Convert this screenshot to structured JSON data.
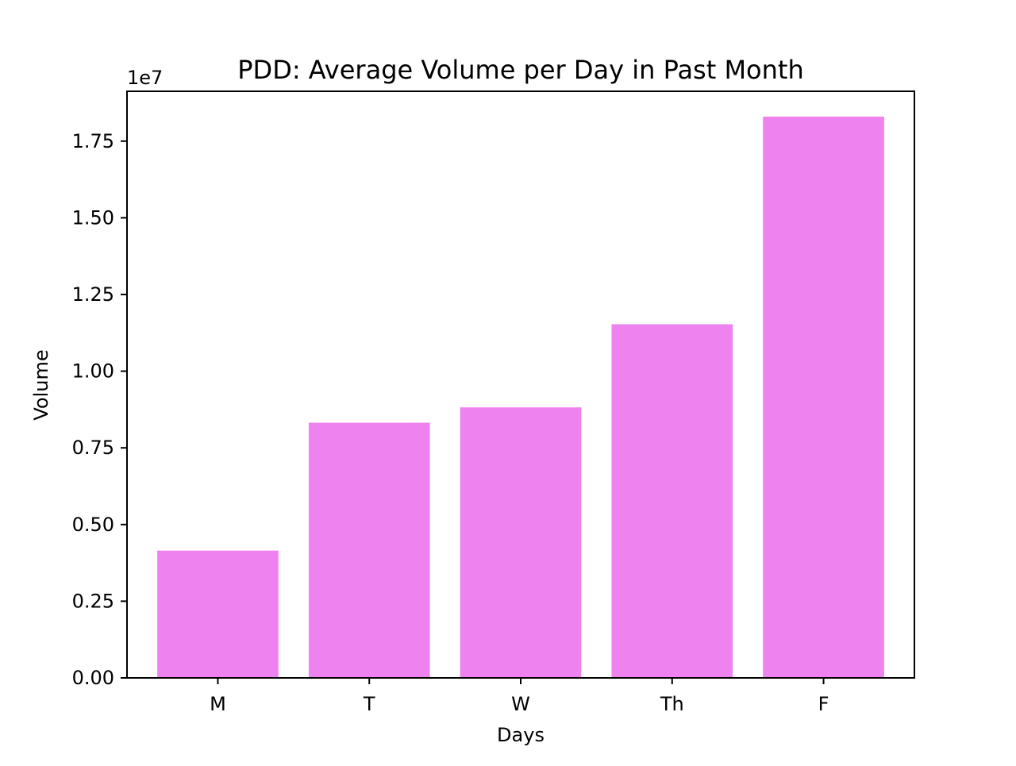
{
  "chart_data": {
    "type": "bar",
    "title": "PDD: Average Volume per Day in Past Month",
    "xlabel": "Days",
    "ylabel": "Volume",
    "y_offset_label": "1e7",
    "y_scale_factor": 10000000,
    "categories": [
      "M",
      "T",
      "W",
      "Th",
      "F"
    ],
    "values": [
      4150000,
      8320000,
      8820000,
      11530000,
      18300000
    ],
    "ylim": [
      0,
      19125000
    ],
    "yticks": [
      0,
      2500000,
      5000000,
      7500000,
      10000000,
      12500000,
      15000000,
      17500000
    ],
    "ytick_labels": [
      "0.00",
      "0.25",
      "0.50",
      "0.75",
      "1.00",
      "1.25",
      "1.50",
      "1.75"
    ],
    "bar_color": "#ee82ee",
    "grid": false,
    "legend": "none"
  }
}
